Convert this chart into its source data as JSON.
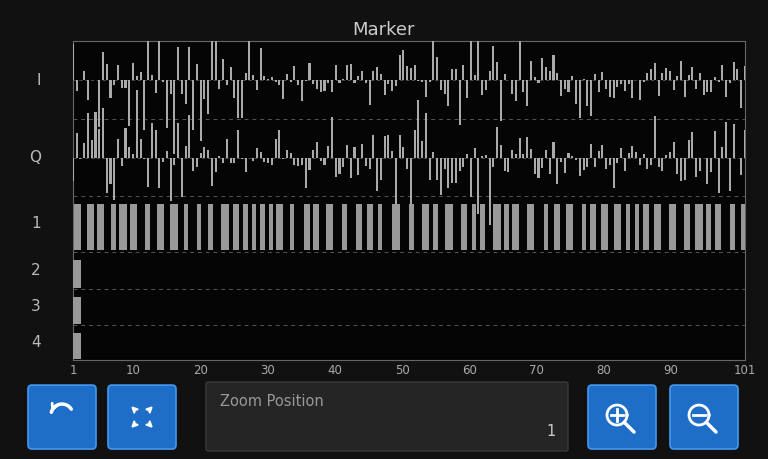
{
  "title": "Marker",
  "bg_color": "#111111",
  "plot_bg_color": "#050505",
  "title_color": "#cccccc",
  "waveform_color": "#aaaaaa",
  "pulse_color": "#999999",
  "dashed_color": "#555555",
  "label_color": "#bbbbbb",
  "tick_color": "#aaaaaa",
  "border_color": "#666666",
  "x_ticks": [
    1,
    10,
    20,
    30,
    40,
    50,
    60,
    70,
    80,
    90,
    101
  ],
  "x_min": 1,
  "x_max": 101,
  "row_labels": [
    "I",
    "Q",
    "1",
    "2",
    "3",
    "4"
  ],
  "zoom_position_text": "Zoom Position",
  "zoom_value": "1",
  "button_color": "#1e6ec8",
  "bottom_bg_color": "#1a1a1a",
  "zoom_box_bg": "#252525",
  "zoom_text_color": "#999999"
}
